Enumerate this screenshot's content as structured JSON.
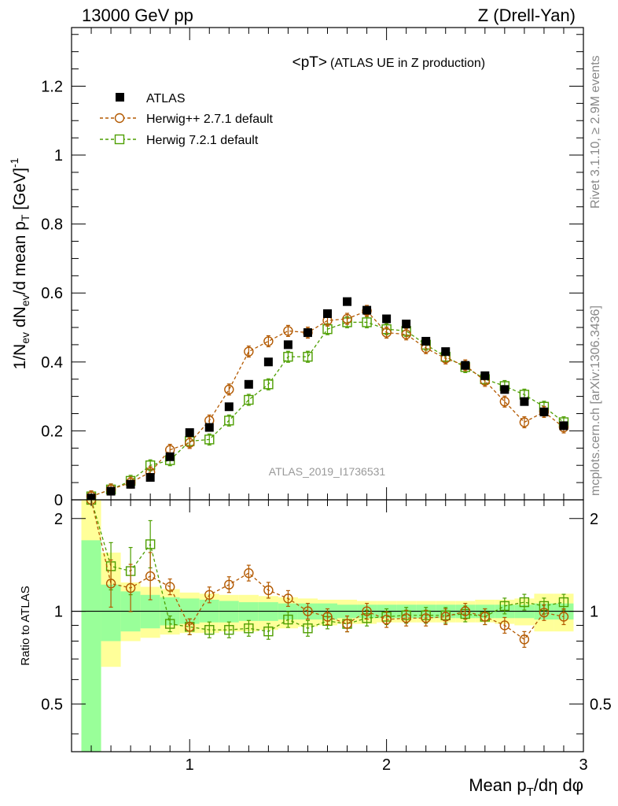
{
  "header": {
    "left": "13000 GeV pp",
    "right": "Z (Drell-Yan)"
  },
  "side_labels": {
    "rivet": "Rivet 3.1.10, ≥ 2.9M events",
    "mcplots": "mcplots.cern.ch [arXiv:1306.3436]"
  },
  "chart_data": {
    "type": "scatter",
    "title": "<pT>",
    "subtitle": "(ATLAS UE in Z production)",
    "analysis_label": "ATLAS_2019_I1736531",
    "xlabel": "Mean p_T/dη dφ",
    "ylabel": "1/N_ev dN_ev/d mean p_T [GeV]^-1",
    "ratio_ylabel": "Ratio to ATLAS",
    "xlim": [
      0.4,
      3.0
    ],
    "ylim": [
      0,
      1.37
    ],
    "ratio_ylim": [
      0.35,
      2.3
    ],
    "x_ticks": [
      1,
      2,
      3
    ],
    "y_ticks": [
      "0",
      "0.2",
      "0.4",
      "0.6",
      "0.8",
      "1",
      "1.2"
    ],
    "ratio_ticks": [
      "0.5",
      "1",
      "2"
    ],
    "x": [
      0.5,
      0.6,
      0.7,
      0.8,
      0.9,
      1.0,
      1.1,
      1.2,
      1.3,
      1.4,
      1.5,
      1.6,
      1.7,
      1.8,
      1.9,
      2.0,
      2.1,
      2.2,
      2.3,
      2.4,
      2.5,
      2.6,
      2.7,
      2.8,
      2.9
    ],
    "series": [
      {
        "name": "ATLAS",
        "marker": "filled-square",
        "color": "#000000",
        "values": [
          0.005,
          0.025,
          0.045,
          0.065,
          0.125,
          0.195,
          0.21,
          0.27,
          0.335,
          0.4,
          0.45,
          0.485,
          0.54,
          0.575,
          0.55,
          0.525,
          0.51,
          0.46,
          0.43,
          0.39,
          0.36,
          0.32,
          0.285,
          0.255,
          0.215
        ]
      },
      {
        "name": "Herwig++ 2.7.1 default",
        "marker": "open-circle",
        "color": "#b35900",
        "values": [
          0.01,
          0.03,
          0.05,
          0.08,
          0.145,
          0.165,
          0.23,
          0.32,
          0.43,
          0.46,
          0.49,
          0.485,
          0.52,
          0.525,
          0.548,
          0.485,
          0.48,
          0.44,
          0.41,
          0.39,
          0.345,
          0.285,
          0.225,
          0.255,
          0.21
        ],
        "ratio": [
          2.3,
          1.23,
          1.19,
          1.3,
          1.2,
          0.89,
          1.13,
          1.22,
          1.33,
          1.17,
          1.1,
          1.0,
          0.96,
          0.91,
          1.0,
          0.94,
          0.95,
          0.95,
          0.96,
          1.0,
          0.96,
          0.9,
          0.81,
          0.99,
          0.96
        ]
      },
      {
        "name": "Herwig 7.2.1 default",
        "marker": "open-square",
        "color": "#4d9e00",
        "values": [
          0.01,
          0.03,
          0.055,
          0.1,
          0.115,
          0.17,
          0.175,
          0.23,
          0.29,
          0.335,
          0.415,
          0.415,
          0.495,
          0.515,
          0.515,
          0.495,
          0.49,
          0.45,
          0.415,
          0.385,
          0.35,
          0.33,
          0.305,
          0.27,
          0.225
        ],
        "ratio": [
          2.3,
          1.4,
          1.35,
          1.65,
          0.91,
          0.89,
          0.87,
          0.87,
          0.88,
          0.86,
          0.94,
          0.88,
          0.93,
          0.91,
          0.95,
          0.96,
          0.97,
          0.97,
          0.97,
          0.98,
          0.96,
          1.04,
          1.07,
          1.04,
          1.07
        ]
      }
    ],
    "uncertainty_bands": {
      "x_edges": [
        0.45,
        0.55,
        0.65,
        0.75,
        0.85,
        0.95,
        1.05,
        1.15,
        1.25,
        1.35,
        1.45,
        1.55,
        1.65,
        1.75,
        1.85,
        1.95,
        2.05,
        2.15,
        2.25,
        2.35,
        2.45,
        2.55,
        2.65,
        2.75,
        2.85,
        2.95
      ],
      "stat_low": [
        0.25,
        0.8,
        0.86,
        0.88,
        0.9,
        0.91,
        0.92,
        0.92,
        0.93,
        0.93,
        0.94,
        0.94,
        0.94,
        0.95,
        0.95,
        0.95,
        0.95,
        0.95,
        0.95,
        0.95,
        0.95,
        0.95,
        0.95,
        0.94,
        0.94
      ],
      "stat_high": [
        1.7,
        1.22,
        1.16,
        1.13,
        1.11,
        1.1,
        1.09,
        1.08,
        1.07,
        1.07,
        1.06,
        1.06,
        1.06,
        1.05,
        1.05,
        1.05,
        1.05,
        1.05,
        1.05,
        1.05,
        1.05,
        1.05,
        1.05,
        1.06,
        1.06
      ],
      "total_low": [
        0.25,
        0.66,
        0.8,
        0.82,
        0.84,
        0.85,
        0.85,
        0.86,
        0.86,
        0.87,
        0.88,
        0.89,
        0.9,
        0.91,
        0.91,
        0.92,
        0.92,
        0.92,
        0.92,
        0.92,
        0.92,
        0.91,
        0.9,
        0.86,
        0.86
      ],
      "total_high": [
        2.3,
        1.55,
        1.24,
        1.2,
        1.18,
        1.15,
        1.14,
        1.13,
        1.13,
        1.12,
        1.11,
        1.1,
        1.09,
        1.09,
        1.08,
        1.08,
        1.08,
        1.08,
        1.08,
        1.08,
        1.09,
        1.09,
        1.1,
        1.14,
        1.14
      ],
      "stat_color": "#99ff99",
      "total_color": "#ffff99"
    }
  }
}
